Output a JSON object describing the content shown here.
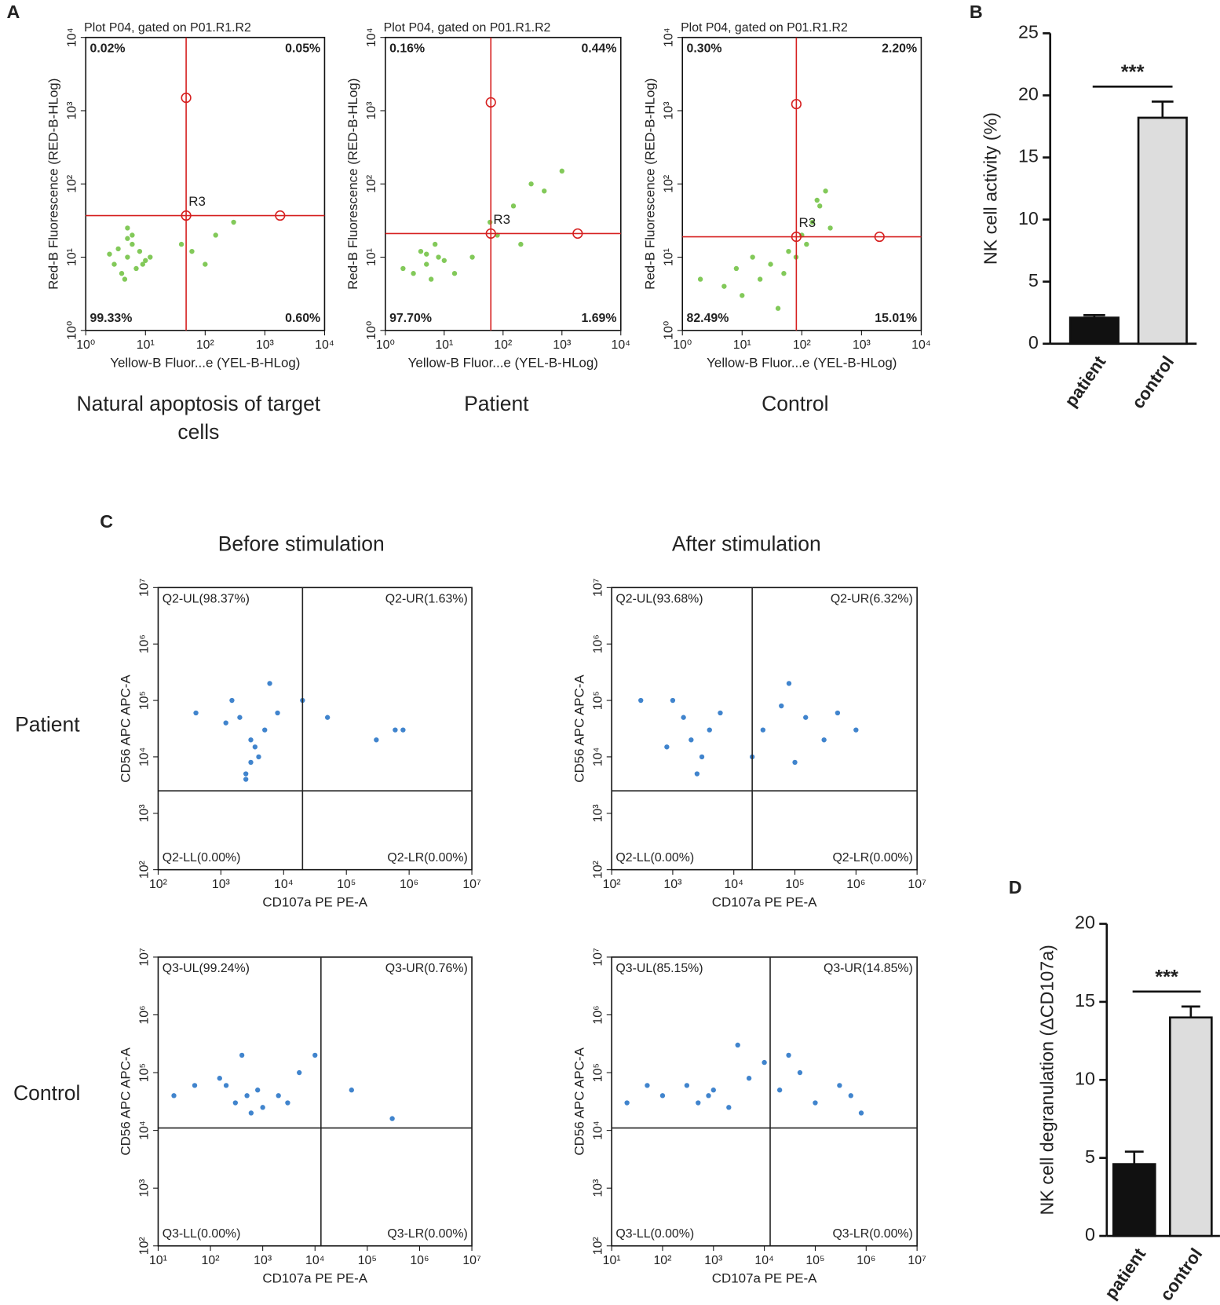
{
  "panel_labels": [
    "A",
    "B",
    "C",
    "D"
  ],
  "panel_c": {
    "column_titles": [
      "Before stimulation",
      "After stimulation"
    ],
    "row_labels": [
      "Patient",
      "Control"
    ]
  },
  "chart_data": [
    {
      "type": "scatter",
      "title": "Plot P04, gated on P01.R1.R2",
      "caption": [
        "Natural apoptosis of target",
        "cells"
      ],
      "xlabel": "Yellow-B Fluor...e (YEL-B-HLog)",
      "ylabel": "Red-B Fluorescence (RED-B-HLog)",
      "log_scale": true,
      "xlim": [
        1,
        10000
      ],
      "ylim": [
        1,
        10000
      ],
      "xticks": [
        {
          "value": 1,
          "label": "10⁰"
        },
        {
          "value": 10,
          "label": "10¹"
        },
        {
          "value": 100,
          "label": "10²"
        },
        {
          "value": 1000,
          "label": "10³"
        },
        {
          "value": 10000,
          "label": "10⁴"
        }
      ],
      "yticks": [
        {
          "value": 1,
          "label": "10⁰"
        },
        {
          "value": 10,
          "label": "10¹"
        },
        {
          "value": 100,
          "label": "10²"
        },
        {
          "value": 1000,
          "label": "10³"
        },
        {
          "value": 10000,
          "label": "10⁴"
        }
      ],
      "gate": {
        "x": 48,
        "y": 37,
        "handle_x": 1800,
        "handle_y": 1500
      },
      "gate_label": "R3",
      "gate_color": "#d62020",
      "quadrant_labels": [
        "0.02%",
        "0.05%",
        "99.33%",
        "0.60%"
      ],
      "quadrant_colors": [
        "#111",
        "#111",
        "#111",
        "#111"
      ],
      "quadrant_bold": true,
      "point_color": "#6cbf3c",
      "points": {
        "x": [
          5,
          3,
          8,
          4,
          6,
          10,
          2.5,
          7,
          5,
          3.5,
          12,
          4.5,
          6,
          9,
          60,
          150,
          300,
          100,
          40,
          5
        ],
        "y": [
          10,
          8,
          12,
          6,
          15,
          9,
          11,
          7,
          18,
          13,
          10,
          5,
          20,
          8,
          12,
          20,
          30,
          8,
          15,
          25
        ]
      }
    },
    {
      "type": "scatter",
      "title": "Plot P04, gated on P01.R1.R2",
      "caption": [
        "Patient"
      ],
      "xlabel": "Yellow-B Fluor...e (YEL-B-HLog)",
      "ylabel": "Red-B Fluorescence (RED-B-HLog)",
      "log_scale": true,
      "xlim": [
        1,
        10000
      ],
      "ylim": [
        1,
        10000
      ],
      "xticks": [
        {
          "value": 1,
          "label": "10⁰"
        },
        {
          "value": 10,
          "label": "10¹"
        },
        {
          "value": 100,
          "label": "10²"
        },
        {
          "value": 1000,
          "label": "10³"
        },
        {
          "value": 10000,
          "label": "10⁴"
        }
      ],
      "yticks": [
        {
          "value": 1,
          "label": "10⁰"
        },
        {
          "value": 10,
          "label": "10¹"
        },
        {
          "value": 100,
          "label": "10²"
        },
        {
          "value": 1000,
          "label": "10³"
        },
        {
          "value": 10000,
          "label": "10⁴"
        }
      ],
      "gate": {
        "x": 62,
        "y": 21,
        "handle_x": 1850,
        "handle_y": 1300
      },
      "gate_label": "R3",
      "gate_color": "#d62020",
      "quadrant_labels": [
        "0.16%",
        "0.44%",
        "97.70%",
        "1.69%"
      ],
      "quadrant_colors": [
        "#111",
        "#111",
        "#111",
        "#111"
      ],
      "quadrant_bold": true,
      "point_color": "#6cbf3c",
      "points": {
        "x": [
          5,
          3,
          8,
          4,
          6,
          10,
          2,
          7,
          5,
          15,
          30,
          80,
          150,
          300,
          500,
          1000,
          200,
          60
        ],
        "y": [
          8,
          6,
          10,
          12,
          5,
          9,
          7,
          15,
          11,
          6,
          10,
          20,
          50,
          100,
          80,
          150,
          15,
          30
        ]
      }
    },
    {
      "type": "scatter",
      "title": "Plot P04, gated on P01.R1.R2",
      "caption": [
        "Control"
      ],
      "xlabel": "Yellow-B Fluor...e (YEL-B-HLog)",
      "ylabel": "Red-B Fluorescence (RED-B-HLog)",
      "log_scale": true,
      "xlim": [
        1,
        10000
      ],
      "ylim": [
        1,
        10000
      ],
      "xticks": [
        {
          "value": 1,
          "label": "10⁰"
        },
        {
          "value": 10,
          "label": "10¹"
        },
        {
          "value": 100,
          "label": "10²"
        },
        {
          "value": 1000,
          "label": "10³"
        },
        {
          "value": 10000,
          "label": "10⁴"
        }
      ],
      "yticks": [
        {
          "value": 1,
          "label": "10⁰"
        },
        {
          "value": 10,
          "label": "10¹"
        },
        {
          "value": 100,
          "label": "10²"
        },
        {
          "value": 1000,
          "label": "10³"
        },
        {
          "value": 10000,
          "label": "10⁴"
        }
      ],
      "gate": {
        "x": 81,
        "y": 19,
        "handle_x": 2000,
        "handle_y": 1230
      },
      "gate_label": "R3",
      "gate_color": "#d62020",
      "quadrant_labels": [
        "0.30%",
        "2.20%",
        "82.49%",
        "15.01%"
      ],
      "quadrant_colors": [
        "#111",
        "#111",
        "#111",
        "#111"
      ],
      "quadrant_bold": true,
      "point_color": "#6cbf3c",
      "points": {
        "x": [
          20,
          10,
          30,
          5,
          50,
          15,
          40,
          8,
          100,
          150,
          200,
          250,
          120,
          300,
          80,
          2,
          60,
          180
        ],
        "y": [
          5,
          3,
          8,
          4,
          6,
          10,
          2,
          7,
          20,
          30,
          50,
          80,
          15,
          25,
          10,
          5,
          12,
          60
        ]
      }
    },
    {
      "type": "bar",
      "ylabel": "NK cell activity (%)",
      "categories": [
        "patient",
        "control"
      ],
      "values": [
        2.1,
        18.2
      ],
      "errors": [
        0.2,
        1.3
      ],
      "colors": [
        "#111111",
        "#dddddd"
      ],
      "ylim": [
        0,
        25
      ],
      "yticks": [
        0,
        5,
        10,
        15,
        20,
        25
      ],
      "annotation": "***"
    },
    {
      "type": "scatter",
      "xlabel": "CD107a PE PE-A",
      "ylabel": "CD56 APC APC-A",
      "log_scale": true,
      "xlim": [
        100,
        10000000
      ],
      "ylim": [
        100,
        10000000
      ],
      "xticks": [
        {
          "value": 100,
          "label": "10²"
        },
        {
          "value": 1000,
          "label": "10³"
        },
        {
          "value": 10000,
          "label": "10⁴"
        },
        {
          "value": 100000,
          "label": "10⁵"
        },
        {
          "value": 1000000,
          "label": "10⁶"
        },
        {
          "value": 10000000,
          "label": "10⁷"
        }
      ],
      "yticks": [
        {
          "value": 100,
          "label": "10²"
        },
        {
          "value": 1000,
          "label": "10³"
        },
        {
          "value": 10000,
          "label": "10⁴"
        },
        {
          "value": 100000,
          "label": "10⁵"
        },
        {
          "value": 1000000,
          "label": "10⁶"
        },
        {
          "value": 10000000,
          "label": "10⁷"
        }
      ],
      "gate": {
        "x": 20000,
        "y": 2500
      },
      "gate_color": "#222",
      "quadrant_labels": [
        "Q2-UL(98.37%)",
        "Q2-UR(1.63%)",
        "Q2-LL(0.00%)",
        "Q2-LR(0.00%)"
      ],
      "quadrant_colors": [
        "#b0309a",
        "#1d3a9c",
        "#8a1f5a",
        "#4c9a1e"
      ],
      "point_color": "#1f6fc4",
      "points": {
        "x": [
          3000,
          2000,
          4000,
          1500,
          5000,
          2500,
          8000,
          3500,
          1200,
          6000,
          3000,
          20000,
          50000,
          800000,
          300000,
          600000,
          400,
          2500
        ],
        "y": [
          20000,
          50000,
          10000,
          100000,
          30000,
          5000,
          60000,
          15000,
          40000,
          200000,
          8000,
          100000,
          50000,
          30000,
          20000,
          30000,
          60000,
          4000
        ]
      }
    },
    {
      "type": "scatter",
      "xlabel": "CD107a PE PE-A",
      "ylabel": "CD56 APC APC-A",
      "log_scale": true,
      "xlim": [
        100,
        10000000
      ],
      "ylim": [
        100,
        10000000
      ],
      "xticks": [
        {
          "value": 100,
          "label": "10²"
        },
        {
          "value": 1000,
          "label": "10³"
        },
        {
          "value": 10000,
          "label": "10⁴"
        },
        {
          "value": 100000,
          "label": "10⁵"
        },
        {
          "value": 1000000,
          "label": "10⁶"
        },
        {
          "value": 10000000,
          "label": "10⁷"
        }
      ],
      "yticks": [
        {
          "value": 100,
          "label": "10²"
        },
        {
          "value": 1000,
          "label": "10³"
        },
        {
          "value": 10000,
          "label": "10⁴"
        },
        {
          "value": 100000,
          "label": "10⁵"
        },
        {
          "value": 1000000,
          "label": "10⁶"
        },
        {
          "value": 10000000,
          "label": "10⁷"
        }
      ],
      "gate": {
        "x": 20000,
        "y": 2500
      },
      "gate_color": "#222",
      "quadrant_labels": [
        "Q2-UL(93.68%)",
        "Q2-UR(6.32%)",
        "Q2-LL(0.00%)",
        "Q2-LR(0.00%)"
      ],
      "quadrant_colors": [
        "#b0309a",
        "#1d3a9c",
        "#8a1f5a",
        "#4c9a1e"
      ],
      "point_color": "#1f6fc4",
      "points": {
        "x": [
          2000,
          1500,
          3000,
          1000,
          4000,
          2500,
          6000,
          800,
          300,
          30000,
          60000,
          150000,
          300000,
          500000,
          100000,
          80000,
          1000000,
          20000
        ],
        "y": [
          20000,
          50000,
          10000,
          100000,
          30000,
          5000,
          60000,
          15000,
          100000,
          30000,
          80000,
          50000,
          20000,
          60000,
          8000,
          200000,
          30000,
          10000
        ]
      }
    },
    {
      "type": "scatter",
      "xlabel": "CD107a PE PE-A",
      "ylabel": "CD56 APC APC-A",
      "log_scale": true,
      "xlim": [
        10,
        10000000
      ],
      "ylim": [
        100,
        10000000
      ],
      "xticks": [
        {
          "value": 10,
          "label": "10¹"
        },
        {
          "value": 100,
          "label": "10²"
        },
        {
          "value": 1000,
          "label": "10³"
        },
        {
          "value": 10000,
          "label": "10⁴"
        },
        {
          "value": 100000,
          "label": "10⁵"
        },
        {
          "value": 1000000,
          "label": "10⁶"
        },
        {
          "value": 10000000,
          "label": "10⁷"
        }
      ],
      "yticks": [
        {
          "value": 100,
          "label": "10²"
        },
        {
          "value": 1000,
          "label": "10³"
        },
        {
          "value": 10000,
          "label": "10⁴"
        },
        {
          "value": 100000,
          "label": "10⁵"
        },
        {
          "value": 1000000,
          "label": "10⁶"
        },
        {
          "value": 10000000,
          "label": "10⁷"
        }
      ],
      "gate": {
        "x": 13000,
        "y": 11000
      },
      "gate_color": "#222",
      "quadrant_labels": [
        "Q3-UL(99.24%)",
        "Q3-UR(0.76%)",
        "Q3-LL(0.00%)",
        "Q3-LR(0.00%)"
      ],
      "quadrant_colors": [
        "#e0201c",
        "#1d3a9c",
        "#5a1f6a",
        "#4c9a1e"
      ],
      "point_color": "#1f6fc4",
      "points": {
        "x": [
          500,
          300,
          800,
          200,
          1000,
          2000,
          150,
          600,
          3000,
          50,
          20,
          5000,
          10000,
          50000,
          300000,
          400
        ],
        "y": [
          40000,
          30000,
          50000,
          60000,
          25000,
          40000,
          80000,
          20000,
          30000,
          60000,
          40000,
          100000,
          200000,
          50000,
          16000,
          200000
        ]
      }
    },
    {
      "type": "scatter",
      "xlabel": "CD107a PE PE-A",
      "ylabel": "CD56 APC APC-A",
      "log_scale": true,
      "xlim": [
        10,
        10000000
      ],
      "ylim": [
        100,
        10000000
      ],
      "xticks": [
        {
          "value": 10,
          "label": "10¹"
        },
        {
          "value": 100,
          "label": "10²"
        },
        {
          "value": 1000,
          "label": "10³"
        },
        {
          "value": 10000,
          "label": "10⁴"
        },
        {
          "value": 100000,
          "label": "10⁵"
        },
        {
          "value": 1000000,
          "label": "10⁶"
        },
        {
          "value": 10000000,
          "label": "10⁷"
        }
      ],
      "yticks": [
        {
          "value": 100,
          "label": "10²"
        },
        {
          "value": 1000,
          "label": "10³"
        },
        {
          "value": 10000,
          "label": "10⁴"
        },
        {
          "value": 100000,
          "label": "10⁵"
        },
        {
          "value": 1000000,
          "label": "10⁶"
        },
        {
          "value": 10000000,
          "label": "10⁷"
        }
      ],
      "gate": {
        "x": 13000,
        "y": 11000
      },
      "gate_color": "#222",
      "quadrant_labels": [
        "Q3-UL(85.15%)",
        "Q3-UR(14.85%)",
        "Q3-LL(0.00%)",
        "Q3-LR(0.00%)"
      ],
      "quadrant_colors": [
        "#e0201c",
        "#1d3a9c",
        "#5a1f6a",
        "#4c9a1e"
      ],
      "point_color": "#1f6fc4",
      "points": {
        "x": [
          800,
          500,
          1000,
          300,
          2000,
          5000,
          100,
          50,
          20,
          20000,
          50000,
          100000,
          300000,
          500000,
          800000,
          30000,
          10000,
          3000
        ],
        "y": [
          40000,
          30000,
          50000,
          60000,
          25000,
          80000,
          40000,
          60000,
          30000,
          50000,
          100000,
          30000,
          60000,
          40000,
          20000,
          200000,
          150000,
          300000
        ]
      }
    },
    {
      "type": "bar",
      "ylabel": "NK cell degranulation (ΔCD107a)",
      "categories": [
        "patient",
        "control"
      ],
      "values": [
        4.6,
        14
      ],
      "errors": [
        0.8,
        0.7
      ],
      "colors": [
        "#111111",
        "#dddddd"
      ],
      "ylim": [
        0,
        20
      ],
      "yticks": [
        0,
        5,
        10,
        15,
        20
      ],
      "annotation": "***"
    }
  ]
}
